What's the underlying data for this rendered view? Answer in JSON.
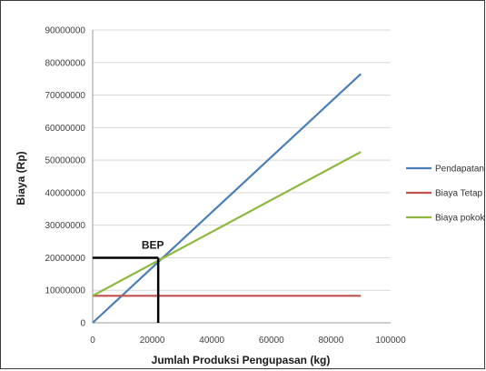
{
  "chart_data": {
    "type": "line",
    "title": "",
    "xlabel": "Jumlah Produksi Pengupasan (kg)",
    "ylabel": "Biaya (Rp)",
    "xlim": [
      0,
      100000
    ],
    "ylim": [
      0,
      90000000
    ],
    "x_ticks": [
      0,
      20000,
      40000,
      60000,
      80000,
      100000
    ],
    "x_tick_labels": [
      "0",
      "20000",
      "40000",
      "60000",
      "80000",
      "100000"
    ],
    "y_ticks": [
      0,
      10000000,
      20000000,
      30000000,
      40000000,
      50000000,
      60000000,
      70000000,
      80000000,
      90000000
    ],
    "y_tick_labels": [
      "0",
      "10000000",
      "20000000",
      "30000000",
      "40000000",
      "50000000",
      "60000000",
      "70000000",
      "80000000",
      "90000000"
    ],
    "grid": "horizontal",
    "legend_position": "right",
    "series": [
      {
        "name": "Pendapatan",
        "color": "#4a7ebb",
        "x": [
          0,
          90000
        ],
        "y": [
          0,
          76500000
        ]
      },
      {
        "name": "Biaya Tetap",
        "color": "#c0504d",
        "x": [
          0,
          90000
        ],
        "y": [
          8300000,
          8300000
        ]
      },
      {
        "name": "Biaya pokok",
        "color": "#8db83f",
        "x": [
          0,
          90000
        ],
        "y": [
          8300000,
          52500000
        ]
      }
    ],
    "annotations": [
      {
        "text": "BEP",
        "x": 22000,
        "y": 20000000
      }
    ],
    "bep_guides": {
      "x": 22000,
      "y": 20000000,
      "color": "#000000"
    }
  }
}
